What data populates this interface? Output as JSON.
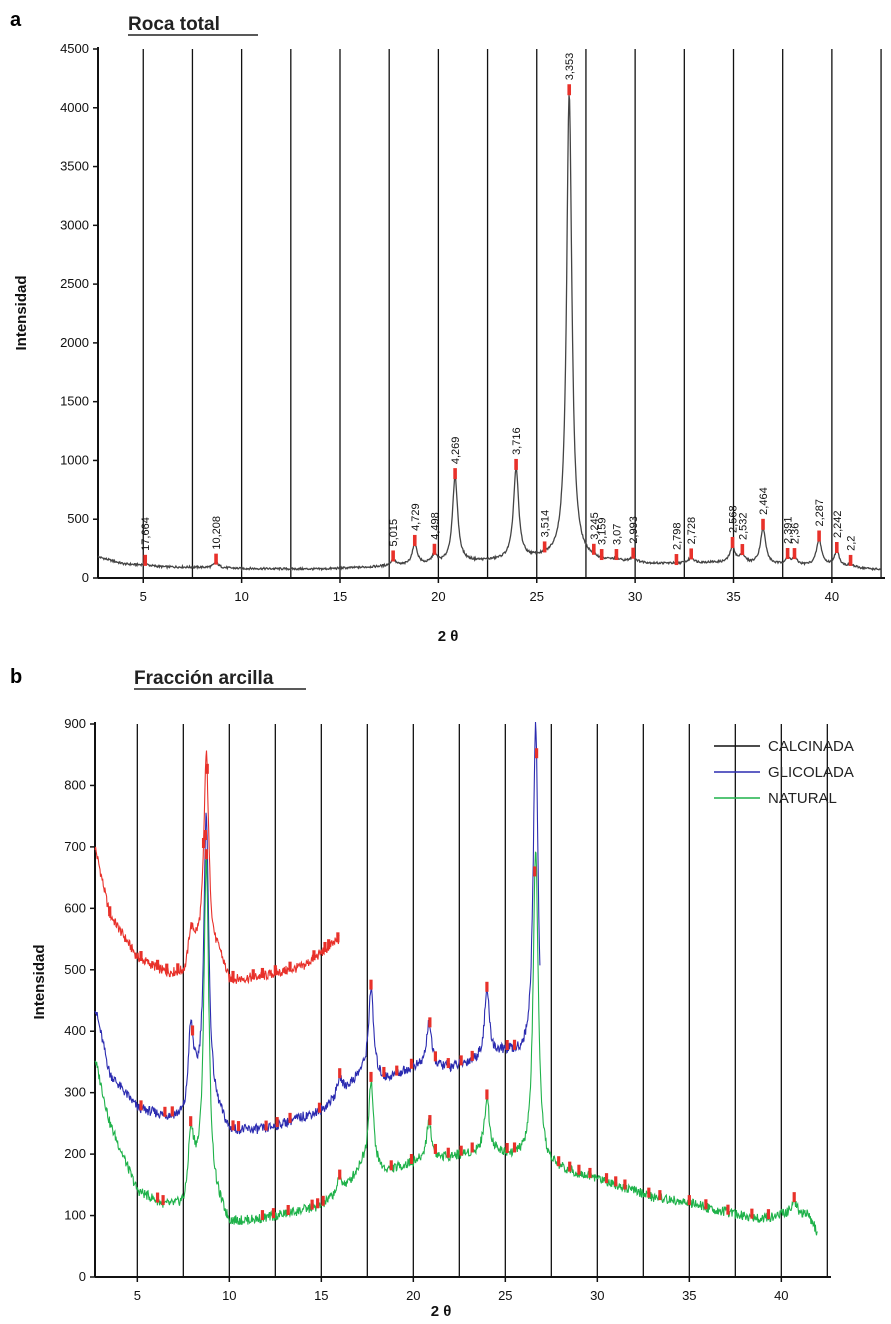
{
  "charts": [
    {
      "panel": "a",
      "title": "Roca total",
      "ylabel": "Intensidad",
      "xlabel": "2 θ",
      "ylim": [
        0,
        4500
      ],
      "yticks": [
        0,
        500,
        1000,
        1500,
        2000,
        2500,
        3000,
        3500,
        4000,
        4500
      ],
      "xlim": [
        2.7,
        42.7
      ],
      "xticks": [
        5,
        10,
        15,
        20,
        25,
        30,
        35,
        40
      ],
      "vlines": [
        5,
        7.5,
        10,
        12.5,
        15,
        17.5,
        20,
        22.5,
        25,
        27.5,
        30,
        32.5,
        35,
        37.5,
        40,
        42.5
      ],
      "line_color": "#444444",
      "marker_color": "#e8312a",
      "baseline": {
        "x": [
          2.7,
          4,
          6,
          8,
          10,
          14,
          17,
          19.3,
          22.2,
          25,
          27.8,
          31,
          34,
          37,
          40,
          42.5
        ],
        "y": [
          180,
          120,
          95,
          90,
          80,
          75,
          95,
          110,
          140,
          160,
          150,
          120,
          130,
          110,
          100,
          70
        ]
      },
      "peaks": [
        {
          "x": 5.1,
          "h": 120,
          "label": "17,664"
        },
        {
          "x": 8.7,
          "h": 130,
          "label": "10,208"
        },
        {
          "x": 17.7,
          "h": 150,
          "label": "5,015"
        },
        {
          "x": 18.8,
          "h": 280,
          "label": "4,729"
        },
        {
          "x": 19.8,
          "h": 190,
          "label": "4,498"
        },
        {
          "x": 20.85,
          "h": 850,
          "label": "4,269"
        },
        {
          "x": 23.95,
          "h": 920,
          "label": "3,716"
        },
        {
          "x": 25.4,
          "h": 160,
          "label": "3,514"
        },
        {
          "x": 26.65,
          "h": 4120,
          "label": "3,353"
        },
        {
          "x": 27.9,
          "h": 150,
          "label": "3,245"
        },
        {
          "x": 28.3,
          "h": 130,
          "label": "3,159"
        },
        {
          "x": 29.05,
          "h": 150,
          "label": "3,07"
        },
        {
          "x": 29.9,
          "h": 170,
          "label": "2,993"
        },
        {
          "x": 32.1,
          "h": 120,
          "label": "2,798"
        },
        {
          "x": 32.85,
          "h": 170,
          "label": "2,728"
        },
        {
          "x": 34.95,
          "h": 260,
          "label": "2,568"
        },
        {
          "x": 35.45,
          "h": 190,
          "label": "2,532"
        },
        {
          "x": 36.5,
          "h": 420,
          "label": "2,464"
        },
        {
          "x": 37.75,
          "h": 160,
          "label": "2,391"
        },
        {
          "x": 38.1,
          "h": 160,
          "label": "2,36"
        },
        {
          "x": 39.35,
          "h": 320,
          "label": "2,287"
        },
        {
          "x": 40.25,
          "h": 220,
          "label": "2,242"
        },
        {
          "x": 40.95,
          "h": 110,
          "label": "2,2"
        }
      ]
    },
    {
      "panel": "b",
      "title": "Fracción arcilla",
      "ylabel": "Intensidad",
      "xlabel": "2 θ",
      "ylim": [
        0,
        900
      ],
      "yticks": [
        0,
        100,
        200,
        300,
        400,
        500,
        600,
        700,
        800,
        900
      ],
      "xlim": [
        2.7,
        42.7
      ],
      "xticks": [
        5,
        10,
        15,
        20,
        25,
        30,
        35,
        40
      ],
      "vlines": [
        5,
        7.5,
        10,
        12.5,
        15,
        17.5,
        20,
        22.5,
        25,
        27.5,
        30,
        32.5,
        35,
        37.5,
        40,
        42.5
      ],
      "legend": [
        {
          "label": "CALCINADA",
          "color": "#111111"
        },
        {
          "label": "GLICOLADA",
          "color": "#2b2bb0"
        },
        {
          "label": "NATURAL",
          "color": "#1fb24a"
        }
      ],
      "series": [
        {
          "color": "#e8312a",
          "x_end": 16,
          "baseline": {
            "x": [
              2.7,
              3.5,
              5,
              6.5,
              7.6,
              8.1,
              9.5,
              10,
              12,
              14,
              16
            ],
            "y": [
              700,
              590,
              520,
              495,
              490,
              530,
              520,
              480,
              490,
              505,
              550
            ]
          },
          "peaks": [
            {
              "x": 7.9,
              "h": 560
            },
            {
              "x": 8.75,
              "h": 850
            }
          ],
          "markers": [
            3.5,
            5.2,
            6.1,
            6.6,
            7.2,
            8.6,
            8.8,
            10.2,
            11.3,
            11.8,
            12.5,
            13.3,
            14.6,
            15.2,
            15.4,
            15.9
          ]
        },
        {
          "color": "#2b2bb0",
          "x_end": 26.9,
          "baseline": {
            "x": [
              2.7,
              3.5,
              5,
              6.5,
              7.6,
              8.1,
              9.5,
              10,
              12,
              15,
              16,
              17.2,
              18.5,
              20,
              22,
              24,
              25,
              26.2,
              26.9
            ],
            "y": [
              440,
              330,
              275,
              260,
              255,
              300,
              260,
              235,
              240,
              270,
              295,
              330,
              320,
              340,
              340,
              355,
              365,
              355,
              320
            ]
          },
          "peaks": [
            {
              "x": 7.9,
              "h": 400
            },
            {
              "x": 8.75,
              "h": 750
            },
            {
              "x": 16.0,
              "h": 325
            },
            {
              "x": 17.7,
              "h": 470
            },
            {
              "x": 20.85,
              "h": 415
            },
            {
              "x": 24.0,
              "h": 465
            },
            {
              "x": 26.65,
              "h": 900
            }
          ],
          "markers": [
            5.2,
            6.5,
            6.9,
            8.0,
            8.7,
            10.2,
            10.5,
            12.0,
            12.6,
            13.3,
            14.9,
            16.0,
            17.7,
            18.4,
            19.1,
            19.9,
            20.9,
            21.2,
            21.9,
            22.6,
            23.2,
            24.0,
            25.1,
            25.5,
            26.7
          ]
        },
        {
          "color": "#1fb24a",
          "x_end": 42,
          "baseline": {
            "x": [
              2.7,
              3.5,
              5,
              6.5,
              7.6,
              8.1,
              9.5,
              10,
              12,
              15,
              16.5,
              17.2,
              18.5,
              20,
              22,
              24,
              25.5,
              26.2,
              27.2,
              30,
              33,
              35,
              37,
              39,
              40.5,
              41.5,
              42
            ],
            "y": [
              355,
              250,
              140,
              115,
              110,
              160,
              110,
              85,
              95,
              115,
              150,
              180,
              170,
              185,
              195,
              205,
              195,
              190,
              180,
              160,
              130,
              120,
              105,
              95,
              105,
              100,
              70
            ]
          },
          "peaks": [
            {
              "x": 7.9,
              "h": 230
            },
            {
              "x": 8.75,
              "h": 680
            },
            {
              "x": 16.0,
              "h": 160
            },
            {
              "x": 17.7,
              "h": 320
            },
            {
              "x": 20.85,
              "h": 255
            },
            {
              "x": 24.0,
              "h": 290
            },
            {
              "x": 26.65,
              "h": 700
            },
            {
              "x": 40.7,
              "h": 125
            }
          ],
          "markers": [
            6.1,
            6.4,
            7.9,
            8.75,
            11.8,
            12.4,
            13.2,
            14.5,
            14.8,
            15.1,
            16.0,
            17.7,
            18.8,
            19.9,
            20.9,
            21.2,
            21.9,
            22.6,
            23.2,
            24.0,
            25.1,
            25.5,
            26.6,
            27.9,
            28.5,
            29.0,
            29.6,
            30.5,
            31.0,
            31.5,
            32.8,
            33.4,
            35.0,
            35.9,
            37.1,
            38.4,
            39.3,
            40.7
          ]
        }
      ]
    }
  ]
}
